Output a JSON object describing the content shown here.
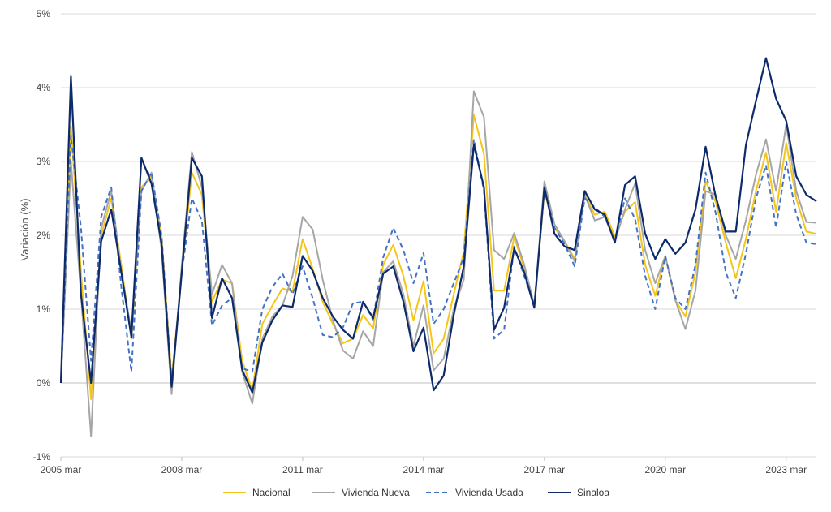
{
  "chart_data": {
    "type": "line",
    "title": "",
    "xlabel": "",
    "ylabel": "Variación (%)",
    "ylim": [
      -1,
      5
    ],
    "yticks": [
      {
        "value": -1,
        "label": "-1%"
      },
      {
        "value": 0,
        "label": "0%"
      },
      {
        "value": 1,
        "label": "1%"
      },
      {
        "value": 2,
        "label": "2%"
      },
      {
        "value": 3,
        "label": "3%"
      },
      {
        "value": 4,
        "label": "4%"
      },
      {
        "value": 5,
        "label": "5%"
      }
    ],
    "xticks": [
      {
        "index": 0,
        "label": "2005 mar"
      },
      {
        "index": 12,
        "label": "2008 mar"
      },
      {
        "index": 24,
        "label": "2011 mar"
      },
      {
        "index": 36,
        "label": "2014 mar"
      },
      {
        "index": 48,
        "label": "2017 mar"
      },
      {
        "index": 60,
        "label": "2020 mar"
      },
      {
        "index": 72,
        "label": "2023 mar"
      }
    ],
    "grid": "horizontal",
    "legend_position": "bottom",
    "series": [
      {
        "name": "Nacional",
        "color": "#F5C518",
        "dash": "solid",
        "values": [
          0.0,
          3.48,
          1.5,
          -0.22,
          2.0,
          2.5,
          1.6,
          0.6,
          2.65,
          2.8,
          2.0,
          0.05,
          1.5,
          2.85,
          2.55,
          1.1,
          1.4,
          1.35,
          0.3,
          -0.1,
          0.8,
          1.05,
          1.28,
          1.24,
          1.95,
          1.55,
          1.1,
          0.8,
          0.54,
          0.6,
          0.92,
          0.74,
          1.6,
          1.87,
          1.45,
          0.85,
          1.38,
          0.4,
          0.6,
          1.2,
          1.78,
          3.63,
          3.1,
          1.25,
          1.25,
          1.98,
          1.55,
          1.05,
          2.6,
          2.1,
          1.92,
          1.68,
          2.55,
          2.28,
          2.32,
          1.98,
          2.32,
          2.45,
          1.6,
          1.18,
          1.72,
          1.12,
          0.9,
          1.5,
          2.73,
          2.45,
          1.9,
          1.42,
          1.95,
          2.6,
          3.12,
          2.32,
          3.25,
          2.5,
          2.05,
          2.02
        ]
      },
      {
        "name": "Vivienda Nueva",
        "color": "#A6A6A6",
        "dash": "solid",
        "values": [
          0.0,
          3.0,
          1.2,
          -0.72,
          2.1,
          2.6,
          1.5,
          0.7,
          2.6,
          2.85,
          1.8,
          -0.15,
          1.6,
          3.13,
          2.65,
          1.2,
          1.6,
          1.35,
          0.15,
          -0.28,
          0.6,
          0.9,
          1.05,
          1.45,
          2.25,
          2.08,
          1.4,
          0.85,
          0.44,
          0.33,
          0.7,
          0.5,
          1.5,
          1.65,
          1.2,
          0.5,
          1.05,
          0.17,
          0.33,
          1.0,
          1.4,
          3.95,
          3.6,
          1.8,
          1.68,
          2.03,
          1.6,
          1.05,
          2.73,
          2.15,
          1.92,
          1.65,
          2.55,
          2.2,
          2.25,
          1.92,
          2.35,
          2.7,
          1.8,
          1.35,
          1.72,
          1.12,
          0.73,
          1.25,
          2.6,
          2.55,
          2.0,
          1.68,
          2.2,
          2.82,
          3.3,
          2.6,
          3.5,
          2.6,
          2.18,
          2.17
        ]
      },
      {
        "name": "Vivienda Usada",
        "color": "#4472C4",
        "dash": "dashed",
        "values": [
          0.0,
          3.35,
          2.1,
          0.3,
          2.25,
          2.65,
          1.3,
          0.15,
          2.6,
          2.85,
          2.0,
          0.0,
          1.5,
          2.5,
          2.2,
          0.78,
          1.05,
          1.15,
          0.2,
          0.15,
          1.0,
          1.3,
          1.48,
          1.2,
          1.58,
          1.15,
          0.65,
          0.62,
          0.75,
          1.08,
          1.1,
          0.86,
          1.7,
          2.1,
          1.8,
          1.35,
          1.76,
          0.8,
          1.0,
          1.35,
          1.7,
          3.3,
          2.6,
          0.6,
          0.72,
          1.85,
          1.45,
          1.05,
          2.62,
          2.1,
          1.88,
          1.58,
          2.5,
          2.38,
          2.25,
          1.92,
          2.5,
          2.22,
          1.45,
          1.0,
          1.72,
          1.15,
          1.0,
          1.6,
          2.85,
          2.3,
          1.5,
          1.15,
          1.75,
          2.5,
          2.95,
          2.1,
          3.0,
          2.28,
          1.9,
          1.88
        ]
      },
      {
        "name": "Sinaloa",
        "color": "#0D2A6B",
        "dash": "solid",
        "values": [
          0.0,
          4.15,
          1.2,
          0.0,
          1.92,
          2.35,
          1.5,
          0.62,
          3.05,
          2.7,
          1.88,
          -0.05,
          1.5,
          3.05,
          2.8,
          0.88,
          1.42,
          1.15,
          0.18,
          -0.13,
          0.55,
          0.85,
          1.05,
          1.03,
          1.72,
          1.52,
          1.15,
          0.9,
          0.72,
          0.6,
          1.1,
          0.88,
          1.48,
          1.58,
          1.1,
          0.43,
          0.75,
          -0.1,
          0.1,
          0.92,
          1.58,
          3.23,
          2.65,
          0.72,
          1.02,
          1.82,
          1.5,
          1.02,
          2.65,
          2.02,
          1.85,
          1.8,
          2.6,
          2.35,
          2.28,
          1.9,
          2.68,
          2.8,
          2.02,
          1.68,
          1.95,
          1.75,
          1.9,
          2.35,
          3.2,
          2.52,
          2.05,
          2.05,
          3.22,
          3.82,
          4.4,
          3.85,
          3.55,
          2.8,
          2.55,
          2.46
        ]
      }
    ]
  }
}
